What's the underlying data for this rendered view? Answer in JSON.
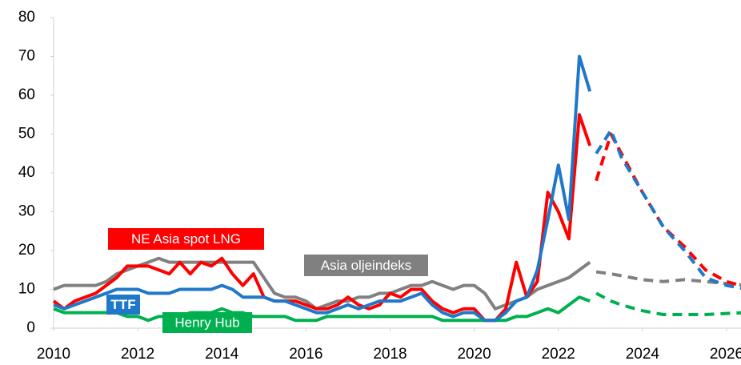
{
  "chart_data": {
    "type": "line",
    "x": [
      2010,
      2010.25,
      2010.5,
      2010.75,
      2011,
      2011.25,
      2011.5,
      2011.75,
      2012,
      2012.25,
      2012.5,
      2012.75,
      2013,
      2013.25,
      2013.5,
      2013.75,
      2014,
      2014.25,
      2014.5,
      2014.75,
      2015,
      2015.25,
      2015.5,
      2015.75,
      2016,
      2016.25,
      2016.5,
      2016.75,
      2017,
      2017.25,
      2017.5,
      2017.75,
      2018,
      2018.25,
      2018.5,
      2018.75,
      2019,
      2019.25,
      2019.5,
      2019.75,
      2020,
      2020.25,
      2020.5,
      2020.75,
      2021,
      2021.25,
      2021.5,
      2021.75,
      2022,
      2022.25,
      2022.5,
      2022.75
    ],
    "forecast_x": [
      2022.9,
      2023.25,
      2023.5,
      2024,
      2024.5,
      2025,
      2025.5,
      2026,
      2026.5
    ],
    "series": [
      {
        "name": "NE Asia spot LNG",
        "color": "#ff0000",
        "values": [
          7,
          5,
          7,
          8,
          9,
          11,
          13,
          16,
          16,
          16,
          15,
          14,
          17,
          14,
          17,
          16,
          18,
          14,
          11,
          14,
          8,
          7,
          7,
          7,
          6,
          5,
          5,
          6,
          8,
          6,
          5,
          6,
          9,
          8,
          10,
          10,
          7,
          5,
          4,
          5,
          5,
          2,
          2,
          5,
          17,
          8,
          12,
          35,
          30,
          23,
          55,
          47
        ],
        "forecast": [
          38,
          50,
          45,
          35,
          26,
          21,
          15,
          12,
          10.5
        ]
      },
      {
        "name": "TTF",
        "color": "#1f78c8",
        "values": [
          6,
          5,
          6,
          7,
          8,
          9,
          10,
          10,
          10,
          9,
          9,
          9,
          10,
          10,
          10,
          10,
          11,
          10,
          8,
          8,
          8,
          7,
          7,
          6,
          5,
          4,
          4,
          5,
          6,
          5,
          6,
          7,
          7,
          7,
          8,
          9,
          6,
          4,
          3,
          4,
          4,
          2,
          2,
          4,
          7,
          8,
          15,
          28,
          42,
          28,
          70,
          61
        ],
        "forecast": [
          45,
          51,
          44,
          35,
          26,
          20,
          13,
          11,
          10
        ]
      },
      {
        "name": "Henry Hub",
        "color": "#00b050",
        "values": [
          5,
          4,
          4,
          4,
          4,
          4,
          4,
          3,
          3,
          2,
          3,
          3,
          3,
          4,
          4,
          4,
          5,
          4,
          4,
          3,
          3,
          3,
          3,
          2,
          2,
          2,
          3,
          3,
          3,
          3,
          3,
          3,
          3,
          3,
          3,
          3,
          3,
          2,
          2,
          2,
          2,
          2,
          2,
          2,
          3,
          3,
          4,
          5,
          4,
          6,
          8,
          7
        ],
        "forecast": [
          9,
          7,
          6,
          4.5,
          3.5,
          3.5,
          3.5,
          3.8,
          4
        ]
      },
      {
        "name": "Asia oljeindeks",
        "color": "#808080",
        "values": [
          10,
          11,
          11,
          11,
          11,
          12,
          14,
          15,
          16,
          17,
          18,
          17,
          17,
          17,
          17,
          17,
          17,
          17,
          17,
          17,
          13,
          9,
          8,
          8,
          7,
          5,
          6,
          7,
          7,
          8,
          8,
          9,
          9,
          10,
          11,
          11,
          12,
          11,
          10,
          11,
          11,
          9,
          5,
          6,
          7,
          8,
          10,
          11,
          12,
          13,
          15,
          17
        ],
        "forecast": [
          14.5,
          14,
          13.5,
          12.5,
          12,
          12.5,
          12,
          11.5,
          11
        ]
      }
    ],
    "xlim": [
      2010,
      2026.5
    ],
    "xticks": [
      2010,
      2012,
      2014,
      2016,
      2018,
      2020,
      2022,
      2024,
      2026
    ],
    "ylim": [
      0,
      80
    ],
    "yticks": [
      0,
      10,
      20,
      30,
      40,
      50,
      60,
      70,
      80
    ]
  }
}
